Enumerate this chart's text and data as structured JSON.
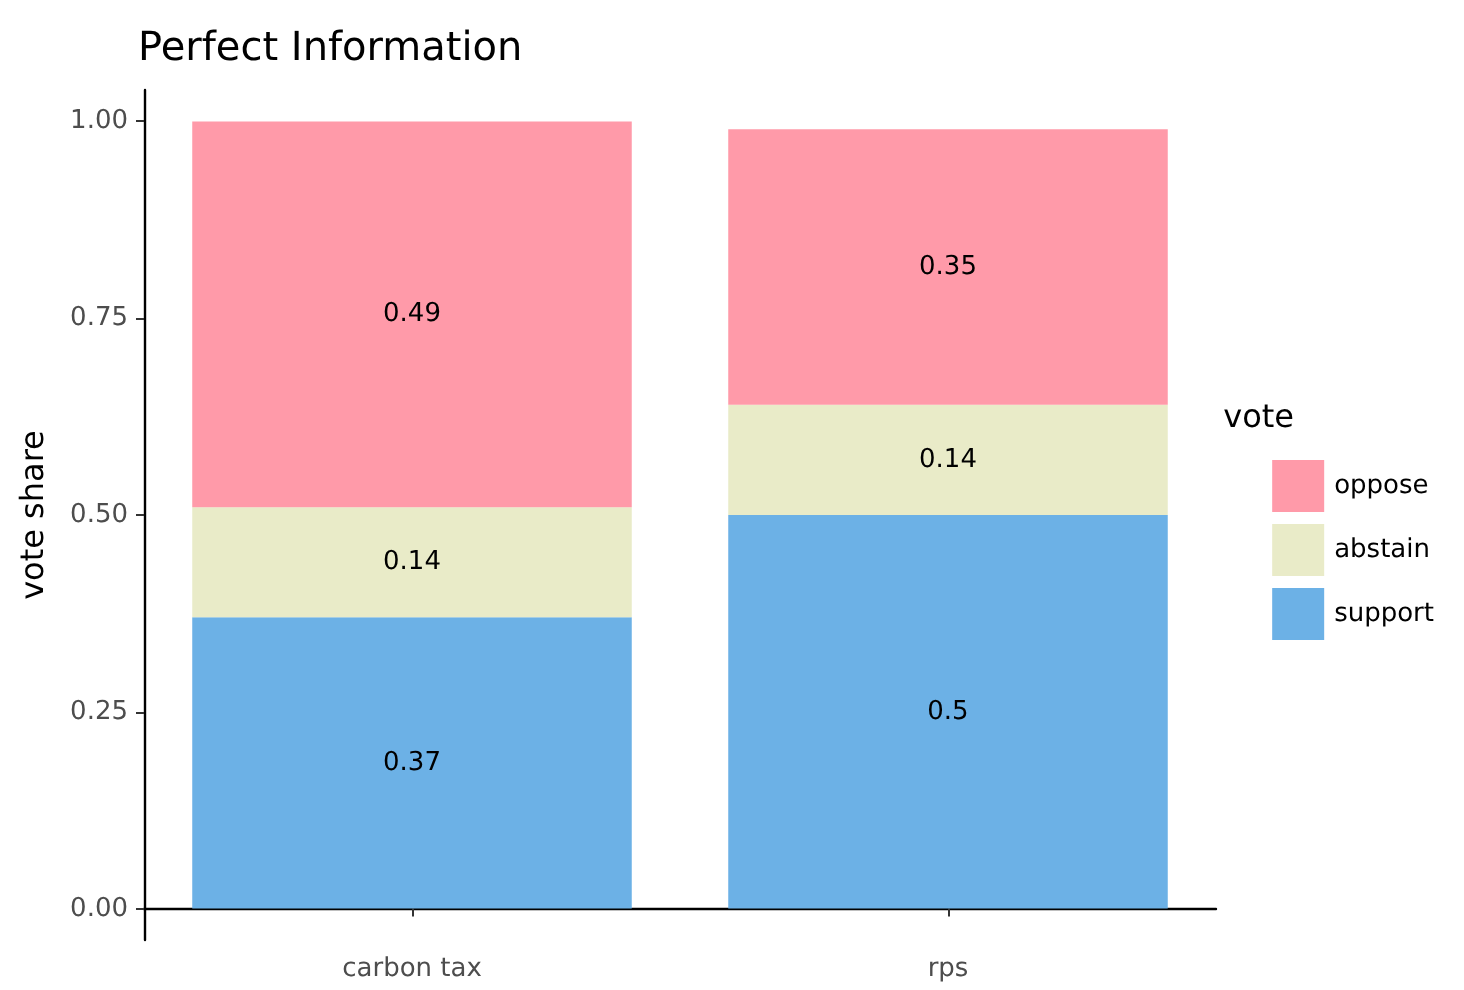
{
  "chart_data": {
    "type": "bar",
    "title": "Perfect Information",
    "xlabel": null,
    "ylabel": "vote share",
    "legend_title": "vote",
    "categories": [
      "carbon tax",
      "rps"
    ],
    "stacked": true,
    "series": [
      {
        "name": "support",
        "color": "#6cb1e6",
        "values": [
          0.37,
          0.5
        ]
      },
      {
        "name": "abstain",
        "color": "#e9ebc8",
        "values": [
          0.14,
          0.14
        ]
      },
      {
        "name": "oppose",
        "color": "#ff9aa9",
        "values": [
          0.49,
          0.35
        ]
      }
    ],
    "ylim": [
      -0.04,
      1.04
    ],
    "yticks": [
      {
        "value": 0,
        "label": "0.00"
      },
      {
        "value": 0.25,
        "label": "0.25"
      },
      {
        "value": 0.5,
        "label": "0.50"
      },
      {
        "value": 0.75,
        "label": "0.75"
      },
      {
        "value": 1,
        "label": "1.00"
      }
    ],
    "grid": false,
    "legend": "right",
    "data_labels": true
  }
}
